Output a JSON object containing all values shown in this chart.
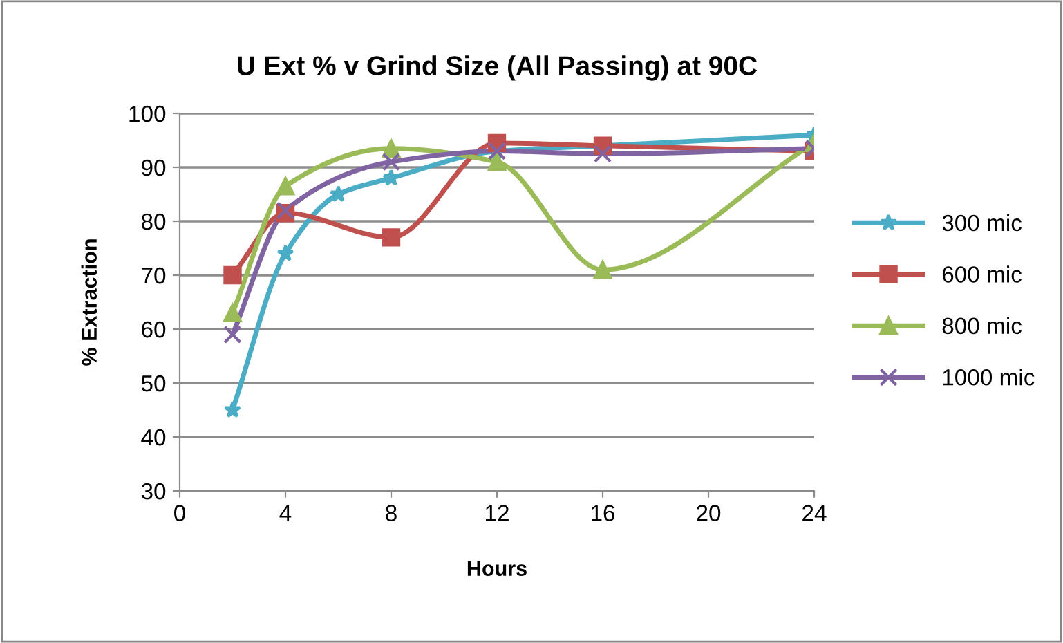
{
  "chart_data": {
    "type": "line",
    "title": "U Ext % v Grind Size (All Passing) at 90C",
    "xlabel": "Hours",
    "ylabel": "% Extraction",
    "xlim": [
      0,
      24
    ],
    "xticks": [
      0,
      4,
      8,
      12,
      16,
      20,
      24
    ],
    "ylim": [
      30,
      100
    ],
    "yticks": [
      30,
      40,
      50,
      60,
      70,
      80,
      90,
      100
    ],
    "grid": "y",
    "legend": "right",
    "series": [
      {
        "name": "300 mic",
        "color": "#4bacc6",
        "marker": "star",
        "x": [
          2,
          4,
          6,
          8,
          12,
          16,
          24
        ],
        "values": [
          45,
          74,
          85,
          88,
          93,
          94,
          96
        ]
      },
      {
        "name": "600 mic",
        "color": "#c0504d",
        "marker": "square",
        "x": [
          2,
          4,
          8,
          12,
          16,
          24
        ],
        "values": [
          70,
          81.5,
          77,
          94.5,
          94,
          93
        ]
      },
      {
        "name": "800 mic",
        "color": "#9bbb59",
        "marker": "triangle",
        "x": [
          2,
          4,
          8,
          12,
          16,
          24
        ],
        "values": [
          63,
          86.5,
          93.5,
          91,
          71,
          94.5
        ]
      },
      {
        "name": "1000 mic",
        "color": "#8064a2",
        "marker": "cross",
        "x": [
          2,
          4,
          8,
          12,
          16,
          24
        ],
        "values": [
          59,
          82,
          91,
          93,
          92.5,
          93.5
        ]
      }
    ]
  }
}
